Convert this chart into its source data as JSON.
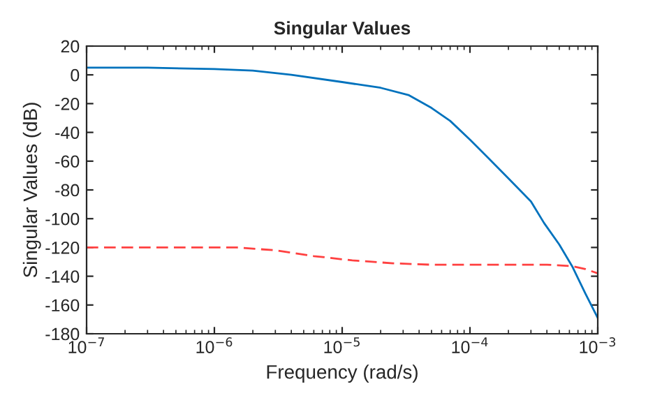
{
  "chart_data": {
    "type": "line",
    "title": "Singular Values",
    "xlabel": "Frequency (rad/s)",
    "ylabel": "Singular Values (dB)",
    "log": "x",
    "grid": false,
    "legend": false,
    "xlim": [
      1e-07,
      0.001
    ],
    "xticks": [
      {
        "value": 1e-07,
        "label": "10$^{−7}$"
      },
      {
        "value": 1e-06,
        "label": "10$^{−6}$"
      },
      {
        "value": 1e-05,
        "label": "10$^{−5}$"
      },
      {
        "value": 0.0001,
        "label": "10$^{−4}$"
      },
      {
        "value": 0.001,
        "label": "10$^{−3}$"
      }
    ],
    "ylim": [
      -180,
      20
    ],
    "yticks": [
      -180,
      -160,
      -140,
      -120,
      -100,
      -80,
      -60,
      -40,
      -20,
      0,
      20
    ],
    "series": [
      {
        "color": "#0072bd",
        "line_style": "solid",
        "x": [
          1e-07,
          3e-07,
          1e-06,
          2e-06,
          4e-06,
          1e-05,
          2e-05,
          3.3e-05,
          5e-05,
          7e-05,
          0.0001,
          0.00014,
          0.0002,
          0.0003,
          0.00038,
          0.0005,
          0.00063,
          0.0008,
          0.001
        ],
        "values": [
          5,
          5,
          4,
          3,
          0,
          -5,
          -9,
          -14,
          -23,
          -32,
          -45,
          -58,
          -72,
          -88,
          -103,
          -118,
          -133,
          -152,
          -169
        ]
      },
      {
        "color": "#ff4040",
        "line_style": "dashed",
        "x": [
          1e-07,
          5e-07,
          1.5e-06,
          3e-06,
          6e-06,
          1.2e-05,
          2.5e-05,
          5e-05,
          0.0001,
          0.0002,
          0.0004,
          0.00063,
          0.0008,
          0.001
        ],
        "values": [
          -120,
          -120,
          -120,
          -122,
          -126,
          -129,
          -131,
          -132,
          -132,
          -132,
          -132,
          -133,
          -135,
          -138
        ]
      }
    ]
  }
}
